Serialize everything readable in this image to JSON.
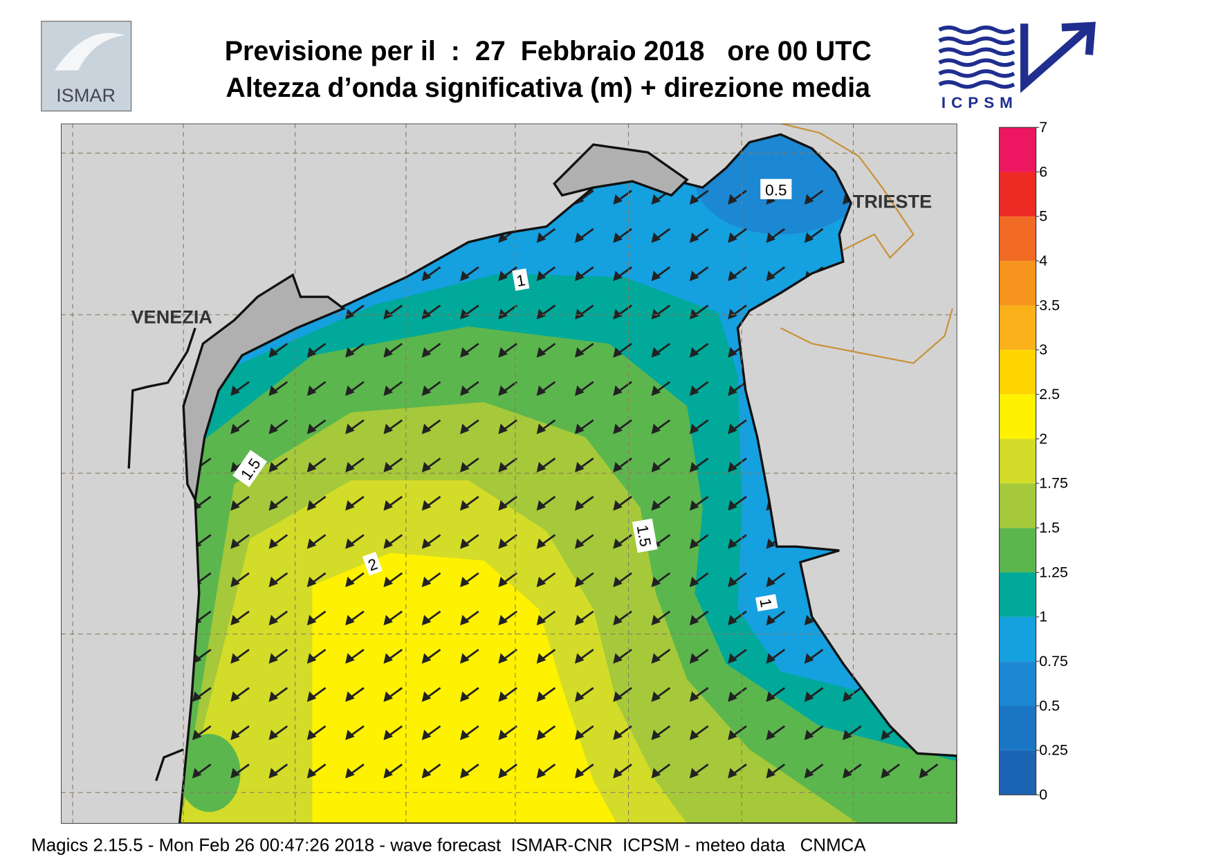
{
  "header": {
    "title_line1": "Previsione per il  :  27  Febbraio 2018   ore 00 UTC",
    "title_line2": "Altezza d’onda significativa (m) + direzione media",
    "logo_left": "ISMAR",
    "logo_right": "ICPSM"
  },
  "map": {
    "cities": [
      "VENEZIA",
      "TRIESTE"
    ],
    "contour_labels": [
      "0.5",
      "1",
      "1.5",
      "1.5",
      "1",
      "2"
    ]
  },
  "colorbar": {
    "ticks": [
      0,
      0.25,
      0.5,
      0.75,
      1,
      1.25,
      1.5,
      1.75,
      2,
      2.5,
      3,
      3.5,
      4,
      5,
      6,
      7
    ],
    "colors": [
      "#1c64b4",
      "#1a76c4",
      "#1c87d2",
      "#15a0e0",
      "#00a99a",
      "#5cb64e",
      "#a5c93a",
      "#d3dc28",
      "#fff200",
      "#ffd500",
      "#fbb21a",
      "#f7941d",
      "#f26b24",
      "#ee2a24",
      "#ec1760"
    ]
  },
  "footer": "Magics 2.15.5 - Mon Feb 26 00:47:26 2018 - wave forecast  ISMAR-CNR  ICPSM - meteo data   CNMCA"
}
